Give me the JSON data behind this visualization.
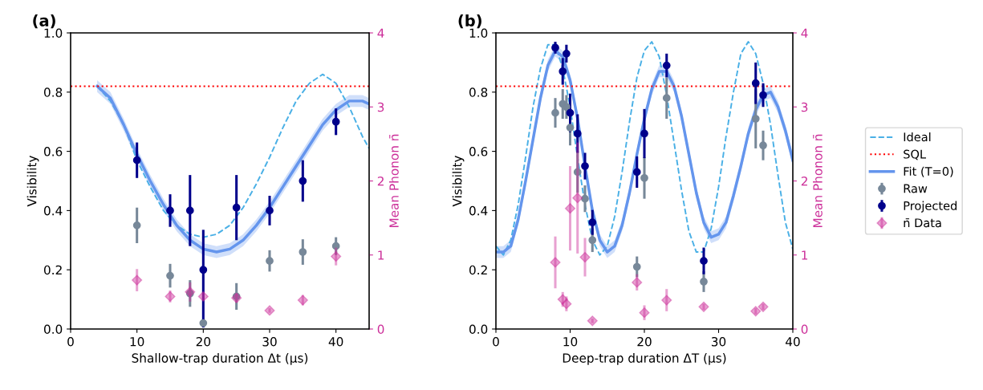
{
  "chart_data": [
    {
      "type": "line",
      "title": "(a)",
      "xlabel": "Shallow-trap duration Δt (μs)",
      "ylabel": "Visibility",
      "y2label": "Mean Phonon n̄",
      "xlim": [
        0,
        45
      ],
      "xticks": [
        0,
        10,
        20,
        30,
        40
      ],
      "ylim": [
        0,
        1
      ],
      "yticks": [
        {
          "value": 0,
          "label": "0.0"
        },
        {
          "value": 0.2,
          "label": "0.2"
        },
        {
          "value": 0.4,
          "label": "0.4"
        },
        {
          "value": 0.6,
          "label": "0.6"
        },
        {
          "value": 0.8,
          "label": "0.8"
        },
        {
          "value": 1,
          "label": "1.0"
        }
      ],
      "y2lim": [
        0,
        4
      ],
      "y2ticks": [
        0,
        1,
        2,
        3,
        4
      ],
      "grid": false,
      "legend": false,
      "ref_lines": [
        {
          "axis": "y",
          "value": 0.82,
          "color": "#ff0000",
          "line_style": "dotted"
        }
      ],
      "series": [
        {
          "type": "line",
          "color": "#4ab0e6",
          "line_style": "dashed",
          "x": [
            4,
            6,
            8,
            10,
            12,
            14,
            16,
            18,
            20,
            22,
            24,
            26,
            28,
            30,
            32,
            34,
            36,
            38,
            40,
            42,
            44,
            45
          ],
          "values": [
            0.82,
            0.77,
            0.69,
            0.57,
            0.48,
            0.4,
            0.35,
            0.32,
            0.31,
            0.32,
            0.35,
            0.41,
            0.49,
            0.58,
            0.68,
            0.77,
            0.83,
            0.86,
            0.83,
            0.75,
            0.65,
            0.61
          ]
        },
        {
          "type": "line",
          "color": "#6495ed",
          "line_style": "solid",
          "x": [
            4,
            6,
            8,
            10,
            12,
            14,
            16,
            18,
            20,
            22,
            24,
            26,
            28,
            30,
            32,
            34,
            36,
            38,
            40,
            42,
            44,
            45
          ],
          "values": [
            0.82,
            0.78,
            0.69,
            0.59,
            0.5,
            0.42,
            0.35,
            0.3,
            0.27,
            0.26,
            0.27,
            0.3,
            0.35,
            0.41,
            0.48,
            0.55,
            0.62,
            0.69,
            0.74,
            0.77,
            0.77,
            0.76
          ],
          "lower": [
            0.8,
            0.76,
            0.67,
            0.57,
            0.48,
            0.4,
            0.33,
            0.28,
            0.25,
            0.24,
            0.25,
            0.28,
            0.33,
            0.39,
            0.46,
            0.53,
            0.6,
            0.67,
            0.72,
            0.75,
            0.75,
            0.74
          ],
          "upper": [
            0.84,
            0.8,
            0.71,
            0.61,
            0.52,
            0.44,
            0.37,
            0.32,
            0.29,
            0.28,
            0.29,
            0.32,
            0.37,
            0.43,
            0.5,
            0.57,
            0.64,
            0.71,
            0.76,
            0.79,
            0.79,
            0.78
          ]
        },
        {
          "type": "scatter",
          "color": "#778899",
          "marker": "circle",
          "x": [
            10,
            15,
            18,
            20,
            25,
            30,
            35,
            40
          ],
          "values": [
            0.35,
            0.18,
            0.12,
            0.02,
            0.11,
            0.23,
            0.26,
            0.28
          ],
          "errors": [
            0.06,
            0.04,
            0.045,
            null,
            0.045,
            0.036,
            0.043,
            0.03
          ]
        },
        {
          "type": "scatter",
          "color": "#00008b",
          "marker": "circle",
          "x": [
            10,
            15,
            18,
            20,
            25,
            30,
            35,
            40
          ],
          "values": [
            0.57,
            0.4,
            0.4,
            0.2,
            0.41,
            0.4,
            0.5,
            0.7
          ],
          "errors": [
            0.06,
            0.055,
            0.12,
            [
              0.005,
              0.335
            ],
            0.11,
            0.05,
            0.07,
            0.045
          ]
        },
        {
          "type": "scatter",
          "axis": "y2",
          "color": "#cc2e99",
          "marker": "diamond",
          "x": [
            10,
            15,
            18,
            20,
            25,
            30,
            35,
            40
          ],
          "values": [
            0.66,
            0.44,
            0.5,
            0.44,
            0.42,
            0.25,
            0.39,
            0.98
          ],
          "errors": [
            0.15,
            0.08,
            0.13,
            0.05,
            0.06,
            0.03,
            0.07,
            0.12
          ]
        }
      ]
    },
    {
      "type": "line",
      "title": "(b)",
      "xlabel": "Deep-trap duration ΔT (μs)",
      "ylabel": "Visibility",
      "y2label": "Mean Phonon n̄",
      "xlim": [
        0,
        40
      ],
      "xticks": [
        0,
        10,
        20,
        30,
        40
      ],
      "ylim": [
        0,
        1
      ],
      "yticks": [
        {
          "value": 0,
          "label": "0.0"
        },
        {
          "value": 0.2,
          "label": "0.2"
        },
        {
          "value": 0.4,
          "label": "0.4"
        },
        {
          "value": 0.6,
          "label": "0.6"
        },
        {
          "value": 0.8,
          "label": "0.8"
        },
        {
          "value": 1,
          "label": "1.0"
        }
      ],
      "y2lim": [
        0,
        4
      ],
      "y2ticks": [
        0,
        1,
        2,
        3,
        4
      ],
      "grid": false,
      "legend": "right",
      "ref_lines": [
        {
          "axis": "y",
          "value": 0.82,
          "label": "SQL",
          "color": "#ff0000",
          "line_style": "dotted"
        }
      ],
      "series": [
        {
          "type": "line",
          "name": "Ideal",
          "color": "#4ab0e6",
          "line_style": "dashed",
          "x": [
            0,
            1,
            2,
            3,
            4,
            5,
            6,
            7,
            8,
            9,
            10,
            11,
            12,
            13,
            14,
            15,
            16,
            17,
            18,
            19,
            20,
            21,
            22,
            23,
            24,
            25,
            26,
            27,
            28,
            29,
            30,
            31,
            32,
            33,
            34,
            35,
            36,
            37,
            38,
            39,
            40
          ],
          "values": [
            0.28,
            0.25,
            0.3,
            0.42,
            0.58,
            0.75,
            0.88,
            0.96,
            0.96,
            0.88,
            0.75,
            0.58,
            0.42,
            0.3,
            0.25,
            0.28,
            0.38,
            0.53,
            0.7,
            0.85,
            0.94,
            0.97,
            0.92,
            0.79,
            0.63,
            0.47,
            0.33,
            0.26,
            0.26,
            0.34,
            0.48,
            0.65,
            0.8,
            0.93,
            0.97,
            0.93,
            0.83,
            0.69,
            0.52,
            0.36,
            0.27
          ]
        },
        {
          "type": "line",
          "name": "Fit (T=0)",
          "color": "#6495ed",
          "line_style": "solid",
          "x": [
            0,
            1,
            2,
            3,
            4,
            5,
            6,
            7,
            8,
            9,
            10,
            11,
            12,
            13,
            14,
            15,
            16,
            17,
            18,
            19,
            20,
            21,
            22,
            23,
            24,
            25,
            26,
            27,
            28,
            29,
            30,
            31,
            32,
            33,
            34,
            35,
            36,
            37,
            38,
            39,
            40
          ],
          "values": [
            0.26,
            0.26,
            0.28,
            0.37,
            0.5,
            0.64,
            0.78,
            0.89,
            0.94,
            0.92,
            0.84,
            0.71,
            0.55,
            0.4,
            0.3,
            0.26,
            0.28,
            0.35,
            0.46,
            0.59,
            0.71,
            0.81,
            0.87,
            0.87,
            0.82,
            0.72,
            0.59,
            0.46,
            0.36,
            0.31,
            0.32,
            0.36,
            0.45,
            0.55,
            0.66,
            0.74,
            0.79,
            0.8,
            0.75,
            0.67,
            0.57
          ],
          "lower": [
            0.24,
            0.24,
            0.26,
            0.35,
            0.48,
            0.62,
            0.76,
            0.87,
            0.92,
            0.9,
            0.82,
            0.69,
            0.53,
            0.38,
            0.28,
            0.24,
            0.26,
            0.33,
            0.44,
            0.57,
            0.69,
            0.79,
            0.85,
            0.85,
            0.8,
            0.7,
            0.57,
            0.44,
            0.34,
            0.29,
            0.3,
            0.34,
            0.43,
            0.53,
            0.64,
            0.72,
            0.77,
            0.78,
            0.73,
            0.65,
            0.55
          ],
          "upper": [
            0.28,
            0.28,
            0.3,
            0.39,
            0.52,
            0.66,
            0.8,
            0.91,
            0.96,
            0.94,
            0.86,
            0.73,
            0.57,
            0.42,
            0.32,
            0.28,
            0.3,
            0.37,
            0.48,
            0.61,
            0.73,
            0.83,
            0.89,
            0.89,
            0.84,
            0.74,
            0.61,
            0.48,
            0.38,
            0.33,
            0.34,
            0.38,
            0.47,
            0.57,
            0.68,
            0.76,
            0.81,
            0.82,
            0.77,
            0.69,
            0.59
          ]
        },
        {
          "type": "scatter",
          "name": "Raw",
          "color": "#778899",
          "marker": "circle",
          "x": [
            8,
            9,
            9.5,
            10,
            11,
            12,
            13,
            19,
            20,
            23,
            28,
            35,
            36
          ],
          "values": [
            0.73,
            0.76,
            0.75,
            0.68,
            0.53,
            0.44,
            0.3,
            0.21,
            0.51,
            0.78,
            0.16,
            0.71,
            0.62
          ],
          "errors": [
            0.05,
            0.05,
            0.04,
            0.06,
            0.07,
            0.045,
            0.04,
            0.035,
            0.07,
            0.07,
            0.035,
            0.1,
            0.05
          ]
        },
        {
          "type": "scatter",
          "name": "Projected",
          "color": "#00008b",
          "marker": "circle",
          "x": [
            8,
            9,
            9.5,
            10,
            11,
            12,
            13,
            19,
            20,
            23,
            28,
            35,
            36
          ],
          "values": [
            0.95,
            0.87,
            0.93,
            0.73,
            0.66,
            0.55,
            0.36,
            0.53,
            0.66,
            0.89,
            0.23,
            0.83,
            0.79
          ],
          "errors": [
            0.02,
            0.045,
            0.03,
            0.065,
            0.065,
            0.045,
            0.042,
            0.053,
            0.083,
            0.04,
            0.045,
            0.07,
            0.04
          ]
        },
        {
          "type": "scatter",
          "name": "n̄ Data",
          "axis": "y2",
          "color": "#cc2e99",
          "marker": "diamond",
          "x": [
            8,
            9,
            9.5,
            10,
            11,
            12,
            13,
            19,
            20,
            23,
            28,
            35,
            36
          ],
          "values": [
            0.9,
            0.4,
            0.34,
            1.63,
            1.77,
            0.97,
            0.11,
            0.63,
            0.22,
            0.39,
            0.3,
            0.24,
            0.3
          ],
          "errors": [
            0.35,
            0.1,
            0.1,
            0.57,
            0.75,
            0.26,
            0.03,
            0.11,
            0.1,
            0.15,
            0.04,
            0.04,
            0.04
          ]
        }
      ]
    }
  ]
}
